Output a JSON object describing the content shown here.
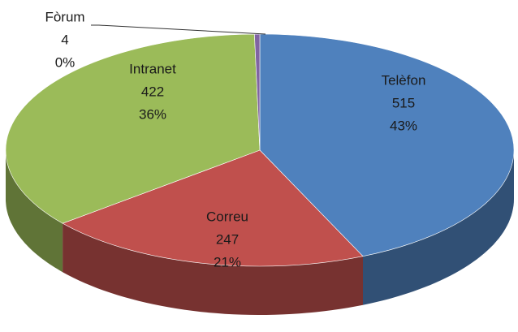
{
  "chart_data": {
    "type": "pie3d",
    "categories": [
      "Telèfon",
      "Correu",
      "Intranet",
      "Fòrum"
    ],
    "values": [
      515,
      247,
      422,
      4
    ],
    "percent_labels": [
      "43%",
      "21%",
      "36%",
      "0%"
    ],
    "colors": [
      "#4f81bd",
      "#c0504d",
      "#9bbb59",
      "#8064a2"
    ]
  }
}
